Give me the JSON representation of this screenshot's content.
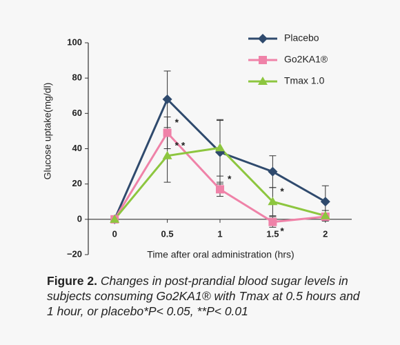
{
  "chart_data": {
    "type": "line",
    "x": [
      0,
      0.5,
      1,
      1.5,
      2
    ],
    "xlim": [
      -0.25,
      2.25
    ],
    "xticks": [
      0,
      0.5,
      1,
      1.5,
      2
    ],
    "ylim": [
      -20,
      100
    ],
    "yticks": [
      {
        "value": -20,
        "label": "−20"
      },
      0,
      20,
      40,
      60,
      80,
      100
    ],
    "xlabel": "Time after oral administration (hrs)",
    "ylabel": "Glucose uptake(mg/dl)",
    "legend": "upper right",
    "series": [
      {
        "name": "Placebo",
        "color": "#2f4a6d",
        "marker": "diamond",
        "values": [
          0,
          68,
          38,
          27,
          10
        ],
        "errors": [
          0,
          16,
          18,
          9,
          9
        ],
        "significance": [
          null,
          null,
          null,
          null,
          null
        ]
      },
      {
        "name": "Go2KA1®",
        "color": "#ef82a8",
        "marker": "square",
        "values": [
          0,
          49,
          17,
          -1.5,
          1.5
        ],
        "errors": [
          0,
          9,
          4,
          3,
          2
        ],
        "significance": [
          null,
          "*",
          "*",
          "*",
          null
        ]
      },
      {
        "name": "Tmax 1.0",
        "color": "#8dc63f",
        "marker": "triangle",
        "values": [
          0,
          36,
          40.5,
          10,
          2
        ],
        "errors": [
          0,
          15,
          16,
          8,
          3
        ],
        "significance": [
          null,
          "* *",
          null,
          "*",
          null
        ]
      }
    ],
    "figure_label": "Figure 2.",
    "caption": "Changes in post-prandial blood sugar levels in subjects consuming Go2KA1® with Tmax at 0.5 hours and 1 hour, or placebo*P< 0.05, **P< 0.01"
  }
}
